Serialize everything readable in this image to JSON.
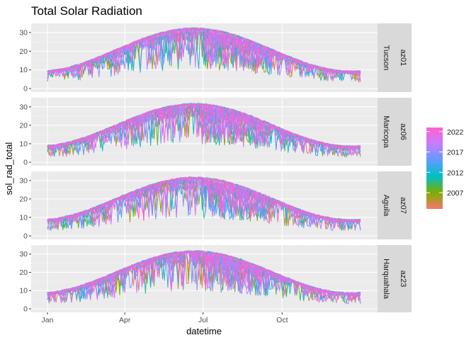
{
  "chart_data": {
    "type": "line",
    "title": "Total Solar Radiation",
    "xlabel": "datetime",
    "ylabel": "sol_rad_total",
    "x_ticks": [
      "Jan",
      "Apr",
      "Jul",
      "Oct"
    ],
    "y_ticks": [
      0,
      10,
      20,
      30
    ],
    "ylim": [
      0,
      33
    ],
    "grid": true,
    "facet_rows": [
      {
        "station_id": "az01",
        "station_name": "Tucson"
      },
      {
        "station_id": "az06",
        "station_name": "Maricopa"
      },
      {
        "station_id": "az07",
        "station_name": "Aguila"
      },
      {
        "station_id": "az23",
        "station_name": "Harquahala"
      }
    ],
    "color_scale": {
      "variable": "year",
      "min": 2003,
      "max": 2023,
      "breaks": [
        2007,
        2012,
        2017,
        2022
      ],
      "colors": [
        "#F8766D",
        "#7CAE00",
        "#00BFC4",
        "#619CFF",
        "#C77CFF",
        "#FF61CC"
      ],
      "legend_position": "right"
    }
  }
}
